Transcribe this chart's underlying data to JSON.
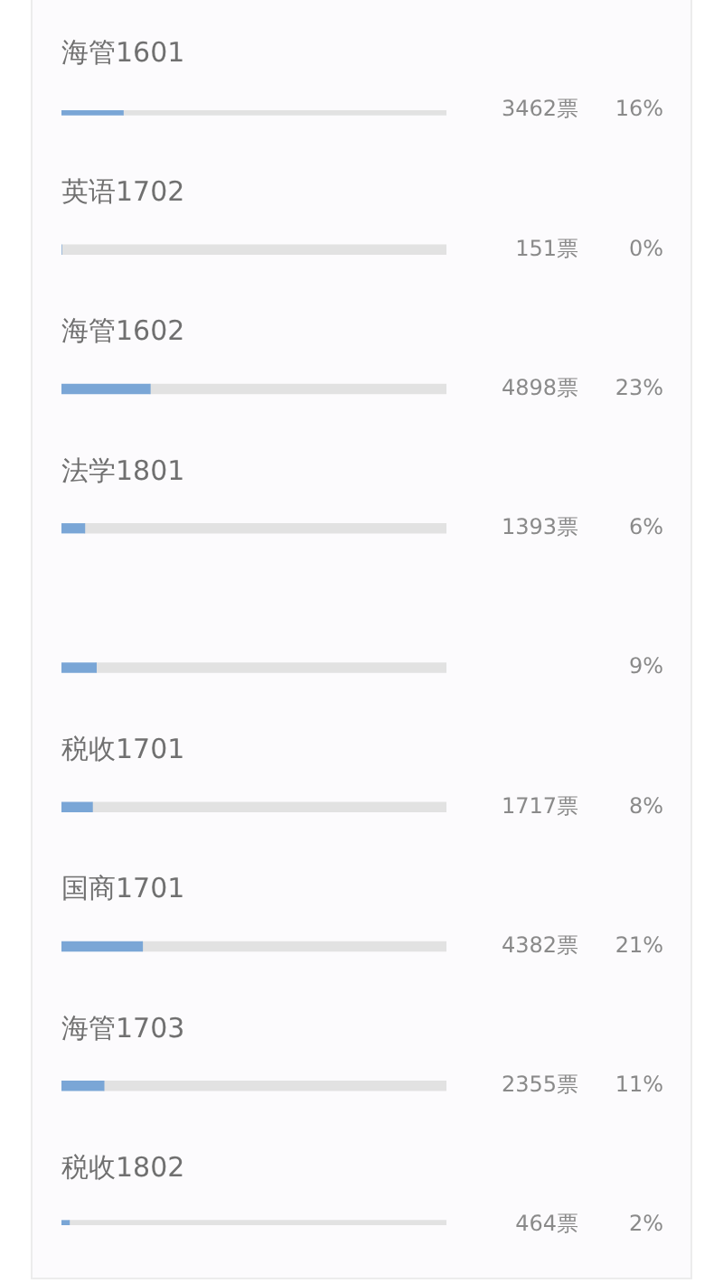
{
  "chart_data": {
    "type": "bar",
    "orientation": "horizontal",
    "stacked": true,
    "categories": [
      "海管1601",
      "英语1702",
      "海管1602",
      "法学1801",
      null,
      "税收1701",
      "国商1701",
      "海管1703",
      "税收1802"
    ],
    "series": [
      {
        "color": "#7aa6d6",
        "values": [
          16,
          0,
          23,
          6,
          9,
          8,
          21,
          11,
          2
        ],
        "value_labels": [
          "16%",
          "0%",
          "23%",
          "6%",
          "9%",
          "8%",
          "21%",
          "11%",
          "2%"
        ]
      },
      {
        "color": "#e2e2e2",
        "values": [
          84,
          100,
          77,
          94,
          91,
          92,
          79,
          89,
          98
        ]
      }
    ],
    "annotations": [
      "3462票",
      "151票",
      "4898票",
      "1393票",
      "1717票",
      "4382票",
      "2355票",
      "464票"
    ]
  }
}
